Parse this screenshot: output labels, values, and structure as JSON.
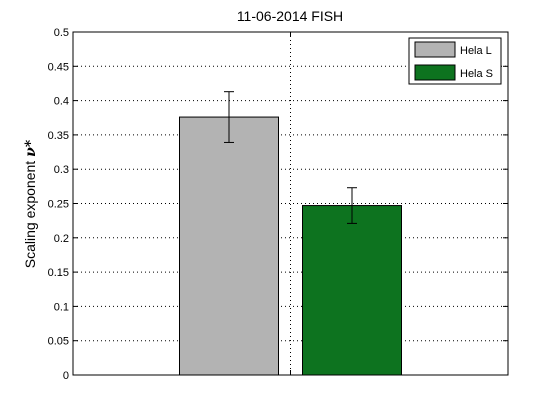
{
  "chart_data": {
    "type": "bar",
    "title": "11-06-2014 FISH",
    "xlabel": "",
    "ylabel": "Scaling exponent",
    "ylabel_symbol": "ν*",
    "ylim": [
      0,
      0.5
    ],
    "yticks": [
      0,
      0.05,
      0.1,
      0.15,
      0.2,
      0.25,
      0.3,
      0.35,
      0.4,
      0.45,
      0.5
    ],
    "ytick_labels": [
      "0",
      "0.05",
      "0.1",
      "0.15",
      "0.2",
      "0.25",
      "0.3",
      "0.35",
      "0.4",
      "0.45",
      "0.5"
    ],
    "grid": true,
    "legend_position": "top-right",
    "series": [
      {
        "name": "Hela L",
        "value": 0.376,
        "error": 0.037,
        "color": "#b3b3b3"
      },
      {
        "name": "Hela S",
        "value": 0.247,
        "error": 0.026,
        "color": "#0d731f"
      }
    ]
  }
}
